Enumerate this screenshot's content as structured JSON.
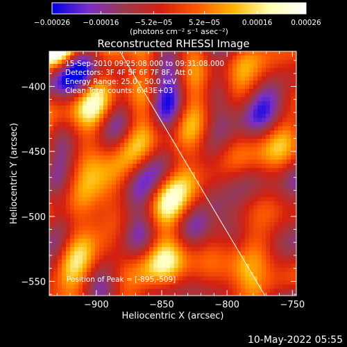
{
  "chart_data": {
    "type": "heatmap",
    "title": "Reconstructed RHESSI Image",
    "xlabel": "Heliocentric X (arcsec)",
    "ylabel": "Heliocentric Y (arcsec)",
    "xlim": [
      -936,
      -747
    ],
    "ylim": [
      -561,
      -373
    ],
    "x_ticks": [
      -900,
      -850,
      -800,
      -750
    ],
    "x_tick_labels": [
      "−900",
      "−850",
      "−800",
      "−750"
    ],
    "y_ticks": [
      -400,
      -450,
      -500,
      -550
    ],
    "y_tick_labels": [
      "−400",
      "−450",
      "−500",
      "−550"
    ],
    "colorbar": {
      "range": [
        -0.00026,
        0.00026
      ],
      "ticks": [
        -0.00026,
        -0.00016,
        -5.2e-05,
        5.2e-05,
        0.00016,
        0.00026
      ],
      "tick_labels": [
        "−0.00026",
        "−0.00016",
        "−5.2e−05",
        "5.2e−05",
        "0.00016",
        "0.00026"
      ],
      "units_label": "(photons cm⁻² s⁻¹ asec⁻²)",
      "colors": [
        "#0000e6",
        "#7a2ec8",
        "#9b3a4a",
        "#d42010",
        "#ff5a00",
        "#ffb400",
        "#ffffb0",
        "#ffffff"
      ]
    },
    "annotations": [
      "15-Sep-2010 09:25:08.000 to 09:31:08.000",
      "Detectors: 3F 4F 5F 6F 7F 8F, Att 0",
      "Energy Range: 25.0 - 50.0 keV",
      "Clean     Total counts: 6.43E+03"
    ],
    "peak_label": "Position of Peak = [-895,-509]",
    "peak_position": [
      -895,
      -509
    ],
    "limb_line": [
      [
        -882,
        -373
      ],
      [
        -771,
        -561
      ]
    ],
    "grid": false
  },
  "footer": {
    "timestamp": "10-May-2022 05:55"
  }
}
